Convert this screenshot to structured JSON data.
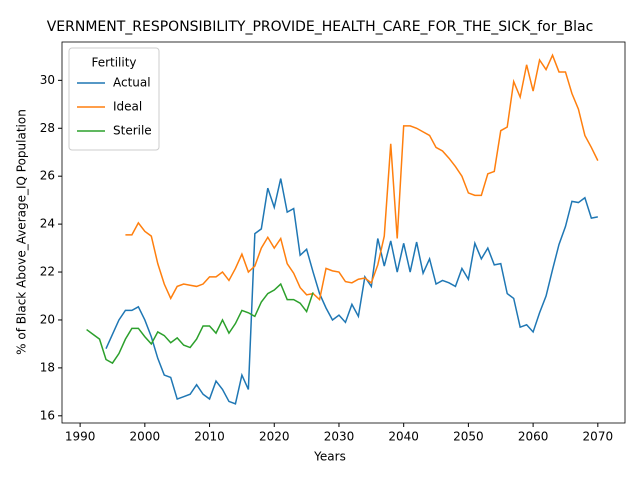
{
  "chart_data": {
    "type": "line",
    "title": "VERNMENT_RESPONSIBILITY_PROVIDE_HEALTH_CARE_FOR_THE_SICK_for_Blac",
    "xlabel": "Years",
    "ylabel": "% of Black Above_Average_IQ Population",
    "legend_title": "Fertility",
    "legend": "upper left",
    "grid": false,
    "x": [
      1991,
      1992,
      1993,
      1994,
      1995,
      1996,
      1997,
      1998,
      1999,
      2000,
      2001,
      2002,
      2003,
      2004,
      2005,
      2006,
      2007,
      2008,
      2009,
      2010,
      2011,
      2012,
      2013,
      2014,
      2015,
      2016,
      2017,
      2018,
      2019,
      2020,
      2021,
      2022,
      2023,
      2024,
      2025,
      2026,
      2027,
      2028,
      2029,
      2030,
      2031,
      2032,
      2033,
      2034,
      2035,
      2036,
      2037,
      2038,
      2039,
      2040,
      2041,
      2042,
      2043,
      2044,
      2045,
      2046,
      2047,
      2048,
      2049,
      2050,
      2051,
      2052,
      2053,
      2054,
      2055,
      2056,
      2057,
      2058,
      2059,
      2060,
      2061,
      2062,
      2063,
      2064,
      2065,
      2066,
      2067,
      2068,
      2069,
      2070
    ],
    "series": [
      {
        "name": "Actual",
        "color": "#1f77b4",
        "values": [
          null,
          null,
          null,
          18.8,
          19.4,
          20.0,
          20.4,
          20.4,
          20.55,
          20.0,
          19.3,
          18.4,
          17.7,
          17.6,
          16.7,
          16.8,
          16.9,
          17.3,
          16.9,
          16.7,
          17.45,
          17.1,
          16.6,
          16.5,
          17.7,
          17.1,
          23.6,
          23.8,
          25.5,
          24.7,
          25.9,
          24.5,
          24.65,
          22.7,
          22.95,
          22.0,
          21.1,
          20.5,
          20.0,
          20.2,
          19.9,
          20.65,
          20.15,
          21.8,
          21.4,
          23.4,
          22.25,
          23.3,
          22.0,
          23.2,
          22.0,
          23.25,
          21.95,
          22.55,
          21.5,
          21.65,
          21.55,
          21.4,
          22.15,
          21.7,
          23.2,
          22.55,
          23.0,
          22.3,
          22.35,
          21.1,
          20.9,
          19.7,
          19.8,
          19.5,
          20.3,
          21.0,
          22.1,
          23.15,
          23.9,
          24.95,
          24.9,
          25.1,
          24.25,
          24.3
        ]
      },
      {
        "name": "Ideal",
        "color": "#ff7f0e",
        "values": [
          null,
          null,
          null,
          null,
          null,
          null,
          23.55,
          23.55,
          24.05,
          23.7,
          23.5,
          22.35,
          21.5,
          20.9,
          21.4,
          21.5,
          21.45,
          21.4,
          21.5,
          21.8,
          21.8,
          22.0,
          21.65,
          22.15,
          22.75,
          22.0,
          22.25,
          23.0,
          23.45,
          23.0,
          23.4,
          22.35,
          21.95,
          21.35,
          21.05,
          21.1,
          20.85,
          22.15,
          22.05,
          22.0,
          21.6,
          21.55,
          21.7,
          21.75,
          21.55,
          22.3,
          23.5,
          27.35,
          23.4,
          28.1,
          28.1,
          28.0,
          27.85,
          27.7,
          27.2,
          27.05,
          26.75,
          26.4,
          26.0,
          25.3,
          25.2,
          25.2,
          26.1,
          26.2,
          27.9,
          28.05,
          29.95,
          29.3,
          30.65,
          29.55,
          30.85,
          30.45,
          31.05,
          30.35,
          30.35,
          29.45,
          28.8,
          27.7,
          27.2,
          26.65
        ]
      },
      {
        "name": "Sterile",
        "color": "#2ca02c",
        "values": [
          19.6,
          19.4,
          19.2,
          18.35,
          18.2,
          18.6,
          19.2,
          19.65,
          19.65,
          19.3,
          19.0,
          19.5,
          19.35,
          19.05,
          19.25,
          18.95,
          18.85,
          19.2,
          19.75,
          19.75,
          19.45,
          20.0,
          19.45,
          19.85,
          20.4,
          20.3,
          20.15,
          20.75,
          21.1,
          21.25,
          21.5,
          20.85,
          20.85,
          20.7,
          20.35,
          21.15,
          null,
          null,
          null,
          null,
          null,
          null,
          null,
          null,
          null,
          null,
          null,
          null,
          null,
          null,
          null,
          null,
          null,
          null,
          null,
          null,
          null,
          null,
          null,
          null,
          null,
          null,
          null,
          null,
          null,
          null,
          null,
          null,
          null,
          null,
          null,
          null,
          null,
          null,
          null,
          null,
          null,
          null,
          null,
          null
        ]
      }
    ],
    "xlim": [
      1987.2,
      2074.2
    ],
    "xticks": [
      1990,
      2000,
      2010,
      2020,
      2030,
      2040,
      2050,
      2060,
      2070
    ],
    "ylim": [
      15.7,
      31.6
    ],
    "yticks": [
      16,
      18,
      20,
      22,
      24,
      26,
      28,
      30
    ]
  }
}
